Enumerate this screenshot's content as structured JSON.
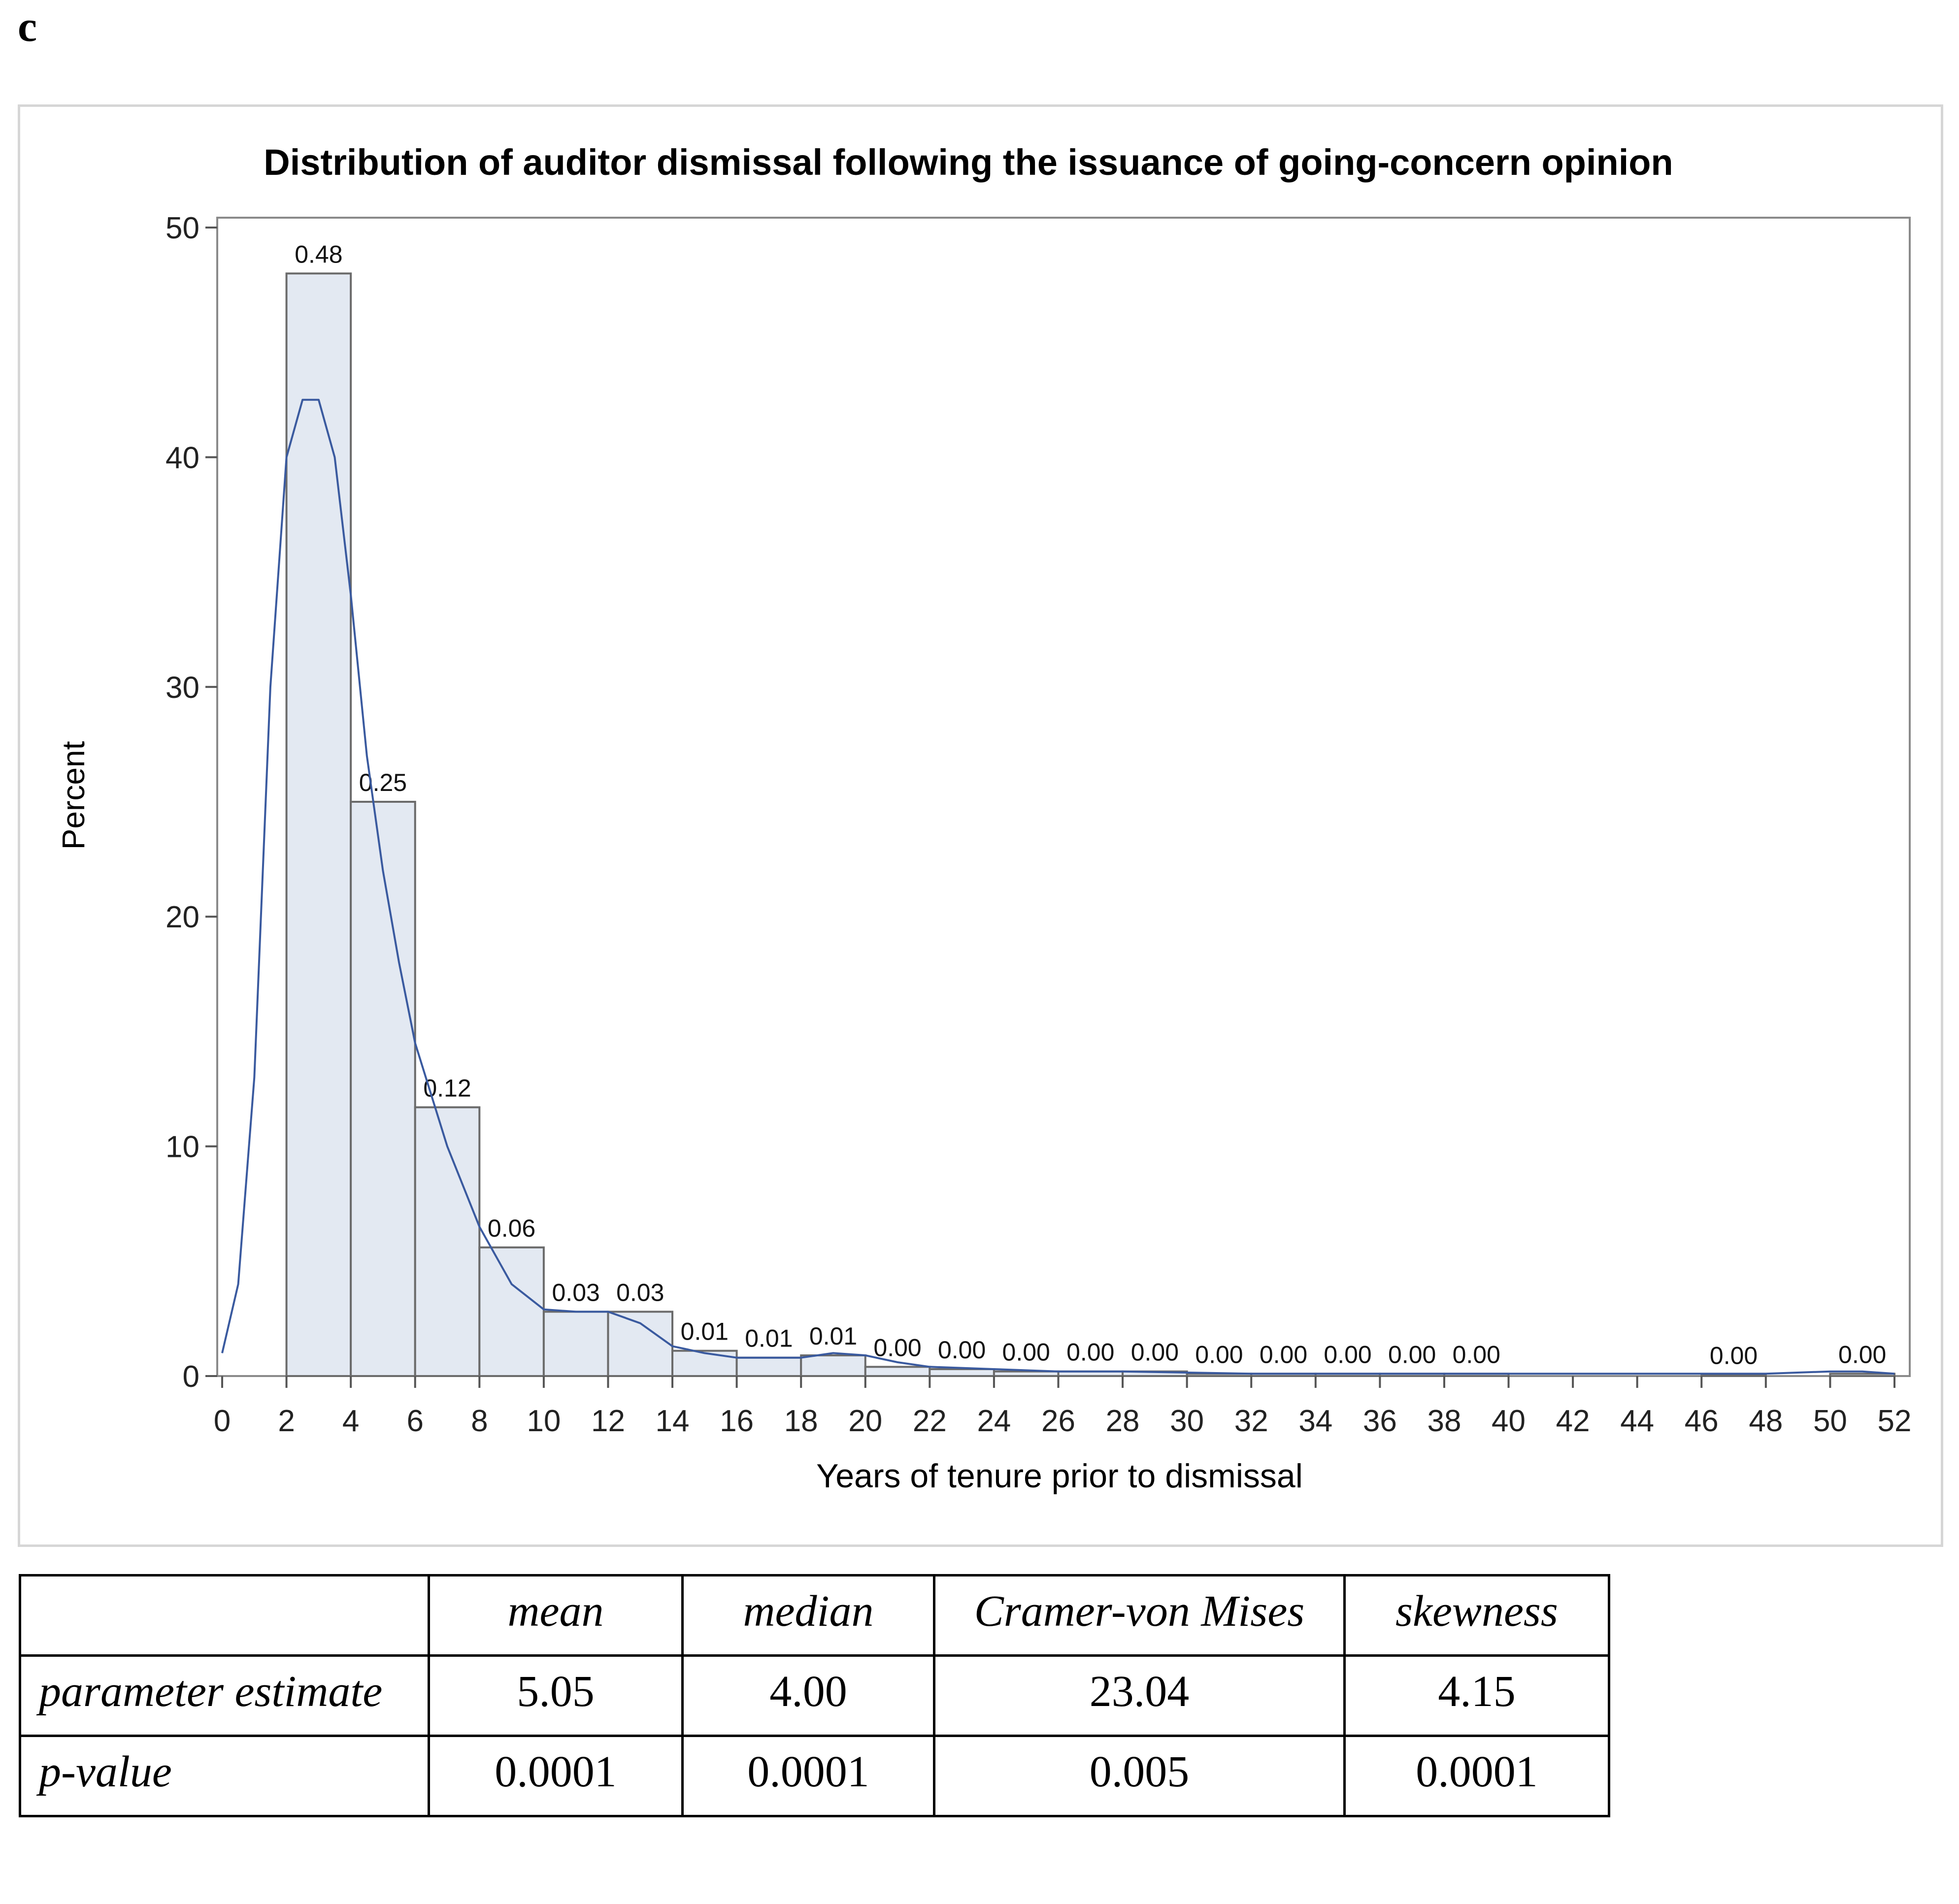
{
  "panel_label": "c",
  "chart_data": {
    "type": "bar",
    "title": "Distribution of auditor dismissal following the issuance of going-concern opinion",
    "xlabel": "Years of tenure prior to dismissal",
    "ylabel": "Percent",
    "xlim": [
      0,
      52
    ],
    "ylim": [
      0,
      50
    ],
    "x_ticks": [
      0,
      2,
      4,
      6,
      8,
      10,
      12,
      14,
      16,
      18,
      20,
      22,
      24,
      26,
      28,
      30,
      32,
      34,
      36,
      38,
      40,
      42,
      44,
      46,
      48,
      50,
      52
    ],
    "y_ticks": [
      0,
      10,
      20,
      30,
      40,
      50
    ],
    "bin_width": 2,
    "bins": [
      {
        "x0": 2,
        "percent": 48.0,
        "label": "0.48"
      },
      {
        "x0": 4,
        "percent": 25.0,
        "label": "0.25"
      },
      {
        "x0": 6,
        "percent": 11.7,
        "label": "0.12"
      },
      {
        "x0": 8,
        "percent": 5.6,
        "label": "0.06"
      },
      {
        "x0": 10,
        "percent": 2.8,
        "label": "0.03"
      },
      {
        "x0": 12,
        "percent": 2.8,
        "label": "0.03"
      },
      {
        "x0": 14,
        "percent": 1.1,
        "label": "0.01"
      },
      {
        "x0": 16,
        "percent": 0.8,
        "label": "0.01"
      },
      {
        "x0": 18,
        "percent": 0.9,
        "label": "0.01"
      },
      {
        "x0": 20,
        "percent": 0.4,
        "label": "0.00"
      },
      {
        "x0": 22,
        "percent": 0.3,
        "label": "0.00"
      },
      {
        "x0": 24,
        "percent": 0.2,
        "label": "0.00"
      },
      {
        "x0": 26,
        "percent": 0.2,
        "label": "0.00"
      },
      {
        "x0": 28,
        "percent": 0.2,
        "label": "0.00"
      },
      {
        "x0": 30,
        "percent": 0.1,
        "label": "0.00"
      },
      {
        "x0": 32,
        "percent": 0.1,
        "label": "0.00"
      },
      {
        "x0": 34,
        "percent": 0.1,
        "label": "0.00"
      },
      {
        "x0": 36,
        "percent": 0.1,
        "label": "0.00"
      },
      {
        "x0": 38,
        "percent": 0.1,
        "label": "0.00"
      },
      {
        "x0": 46,
        "percent": 0.05,
        "label": "0.00"
      },
      {
        "x0": 50,
        "percent": 0.1,
        "label": "0.00"
      }
    ],
    "density_curve": {
      "x": [
        0,
        0.5,
        1,
        1.5,
        2,
        2.5,
        3,
        3.5,
        4,
        4.5,
        5,
        5.5,
        6,
        7,
        8,
        9,
        10,
        11,
        12,
        13,
        14,
        15,
        16,
        17,
        18,
        19,
        20,
        21,
        22,
        24,
        26,
        28,
        30,
        32,
        34,
        36,
        38,
        40,
        42,
        44,
        46,
        48,
        50,
        51,
        52
      ],
      "y": [
        1.0,
        4.0,
        13.0,
        30.0,
        40.0,
        42.5,
        42.5,
        40.0,
        34.0,
        27.0,
        22.0,
        18.0,
        14.5,
        10.0,
        6.5,
        4.0,
        2.9,
        2.8,
        2.8,
        2.3,
        1.3,
        1.0,
        0.8,
        0.8,
        0.8,
        1.0,
        0.9,
        0.6,
        0.4,
        0.3,
        0.2,
        0.2,
        0.15,
        0.1,
        0.1,
        0.1,
        0.1,
        0.1,
        0.1,
        0.1,
        0.1,
        0.1,
        0.2,
        0.2,
        0.1
      ]
    },
    "bar_fill": "#e3e9f2",
    "bar_stroke": "#6b6b6b",
    "curve_color": "#3a5a9f",
    "grid": false
  },
  "stats_table": {
    "headers": [
      "",
      "mean",
      "median",
      "Cramer-von Mises",
      "skewness"
    ],
    "rows": [
      {
        "label": "parameter estimate",
        "values": [
          "5.05",
          "4.00",
          "23.04",
          "4.15"
        ]
      },
      {
        "label": "p-value",
        "values": [
          "0.0001",
          "0.0001",
          "0.005",
          "0.0001"
        ]
      }
    ]
  }
}
